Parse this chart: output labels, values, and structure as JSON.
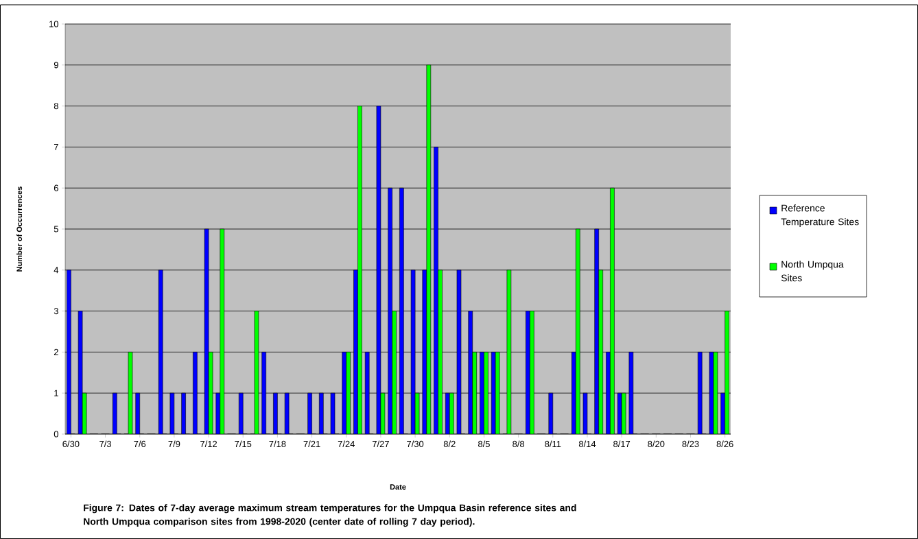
{
  "chart_data": {
    "type": "bar",
    "xlabel": "Date",
    "ylabel": "Number of Occurrences",
    "annotations": [
      "Figure 7:  Dates of 7-day average maximum stream temperatures for the Umpqua Basin reference sites and North Umpqua comparison sites from 1998-2020 (center date of rolling 7 day period)."
    ],
    "categories": [
      "6/30",
      null,
      null,
      "7/3",
      null,
      null,
      "7/6",
      null,
      null,
      "7/9",
      null,
      null,
      "7/12",
      null,
      null,
      "7/15",
      null,
      null,
      "7/18",
      null,
      null,
      "7/21",
      null,
      null,
      "7/24",
      null,
      null,
      "7/27",
      null,
      null,
      "7/30",
      null,
      null,
      "8/2",
      null,
      null,
      "8/5",
      null,
      null,
      "8/8",
      null,
      null,
      "8/11",
      null,
      null,
      "8/14",
      null,
      null,
      "8/17",
      null,
      null,
      "8/20",
      null,
      null,
      "8/23",
      null,
      null,
      "8/26"
    ],
    "series": [
      {
        "name": "Reference Temperature Sites",
        "color": "#0000ff",
        "values": [
          4,
          3,
          0,
          0,
          1,
          0,
          1,
          0,
          4,
          1,
          1,
          2,
          5,
          1,
          0,
          1,
          0,
          2,
          1,
          1,
          0,
          1,
          1,
          1,
          2,
          4,
          2,
          8,
          6,
          6,
          4,
          4,
          7,
          1,
          4,
          3,
          2,
          2,
          0,
          0,
          3,
          0,
          1,
          0,
          2,
          1,
          5,
          2,
          1,
          2,
          0,
          0,
          0,
          0,
          0,
          2,
          2,
          1
        ]
      },
      {
        "name": "North Umpqua Sites",
        "color": "#00ff00",
        "values": [
          0,
          1,
          0,
          0,
          0,
          2,
          0,
          0,
          0,
          0,
          0,
          0,
          2,
          5,
          0,
          0,
          3,
          0,
          0,
          0,
          0,
          0,
          0,
          0,
          2,
          8,
          0,
          1,
          3,
          0,
          1,
          9,
          4,
          1,
          0,
          2,
          2,
          2,
          4,
          0,
          3,
          0,
          0,
          0,
          5,
          0,
          4,
          6,
          1,
          0,
          0,
          0,
          0,
          0,
          0,
          0,
          2,
          3
        ]
      }
    ],
    "ylim": [
      0,
      10
    ],
    "yticks": [
      0,
      1,
      2,
      3,
      4,
      5,
      6,
      7,
      8,
      9,
      10
    ],
    "grid": "y",
    "legend": "right"
  }
}
